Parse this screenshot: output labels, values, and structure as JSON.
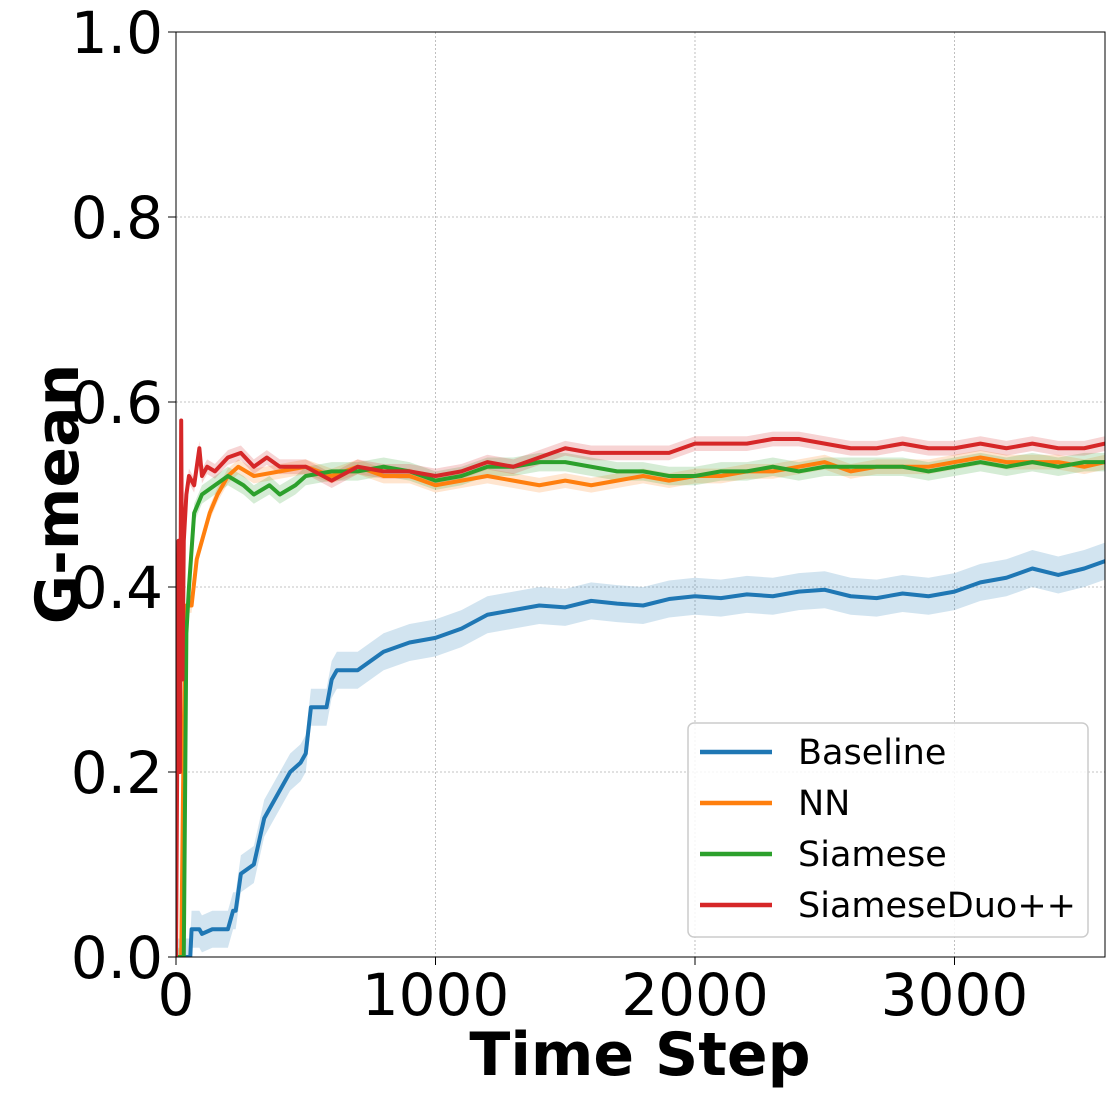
{
  "chart_data": {
    "type": "line",
    "title": "",
    "xlabel": "Time Step",
    "ylabel": "G-mean",
    "xlim": [
      0,
      3580
    ],
    "ylim": [
      0.0,
      1.0
    ],
    "xticks": [
      0,
      1000,
      2000,
      3000
    ],
    "xtick_labels": [
      "0",
      "1000",
      "2000",
      "3000"
    ],
    "yticks": [
      0.0,
      0.2,
      0.4,
      0.6,
      0.8,
      1.0
    ],
    "ytick_labels": [
      "0.0",
      "0.2",
      "0.4",
      "0.6",
      "0.8",
      "1.0"
    ],
    "grid": true,
    "legend_position": "lower-right",
    "series": [
      {
        "name": "Baseline",
        "color": "#1f77b4",
        "band": 0.02,
        "x": [
          0,
          40,
          55,
          60,
          90,
          100,
          140,
          200,
          220,
          230,
          240,
          250,
          300,
          340,
          400,
          440,
          480,
          500,
          520,
          580,
          600,
          620,
          640,
          700,
          800,
          900,
          1000,
          1100,
          1200,
          1300,
          1400,
          1500,
          1600,
          1700,
          1800,
          1900,
          2000,
          2100,
          2200,
          2300,
          2400,
          2500,
          2600,
          2700,
          2800,
          2900,
          3000,
          3100,
          3200,
          3300,
          3400,
          3500,
          3580
        ],
        "y": [
          0.0,
          0.0,
          0.0,
          0.03,
          0.03,
          0.025,
          0.03,
          0.03,
          0.05,
          0.05,
          0.07,
          0.09,
          0.1,
          0.15,
          0.18,
          0.2,
          0.21,
          0.22,
          0.27,
          0.27,
          0.3,
          0.31,
          0.31,
          0.31,
          0.33,
          0.34,
          0.345,
          0.355,
          0.37,
          0.375,
          0.38,
          0.378,
          0.385,
          0.382,
          0.38,
          0.387,
          0.39,
          0.388,
          0.392,
          0.39,
          0.395,
          0.397,
          0.39,
          0.388,
          0.393,
          0.39,
          0.395,
          0.405,
          0.41,
          0.42,
          0.413,
          0.42,
          0.428
        ]
      },
      {
        "name": "NN",
        "color": "#ff7f0e",
        "band": 0.008,
        "x": [
          0,
          20,
          30,
          40,
          60,
          80,
          100,
          130,
          160,
          200,
          240,
          300,
          400,
          500,
          600,
          700,
          800,
          900,
          1000,
          1100,
          1200,
          1300,
          1400,
          1500,
          1600,
          1700,
          1800,
          1900,
          2000,
          2100,
          2200,
          2300,
          2400,
          2500,
          2600,
          2700,
          2800,
          2900,
          3000,
          3100,
          3200,
          3300,
          3400,
          3500,
          3580
        ],
        "y": [
          0.0,
          0.0,
          0.25,
          0.38,
          0.38,
          0.43,
          0.45,
          0.48,
          0.5,
          0.52,
          0.53,
          0.52,
          0.525,
          0.53,
          0.52,
          0.53,
          0.52,
          0.52,
          0.51,
          0.515,
          0.52,
          0.515,
          0.51,
          0.515,
          0.51,
          0.515,
          0.52,
          0.515,
          0.52,
          0.52,
          0.525,
          0.525,
          0.53,
          0.535,
          0.525,
          0.53,
          0.53,
          0.53,
          0.535,
          0.54,
          0.535,
          0.535,
          0.535,
          0.53,
          0.535
        ]
      },
      {
        "name": "Siamese",
        "color": "#2ca02c",
        "band": 0.01,
        "x": [
          0,
          30,
          40,
          50,
          70,
          100,
          150,
          200,
          260,
          300,
          360,
          400,
          460,
          500,
          600,
          700,
          800,
          900,
          1000,
          1100,
          1200,
          1300,
          1400,
          1500,
          1600,
          1700,
          1800,
          1900,
          2000,
          2100,
          2200,
          2300,
          2400,
          2500,
          2600,
          2700,
          2800,
          2900,
          3000,
          3100,
          3200,
          3300,
          3400,
          3500,
          3580
        ],
        "y": [
          0.0,
          0.0,
          0.35,
          0.4,
          0.48,
          0.5,
          0.51,
          0.52,
          0.51,
          0.5,
          0.51,
          0.5,
          0.51,
          0.52,
          0.525,
          0.525,
          0.53,
          0.525,
          0.515,
          0.52,
          0.53,
          0.53,
          0.535,
          0.535,
          0.53,
          0.525,
          0.525,
          0.52,
          0.52,
          0.525,
          0.525,
          0.53,
          0.525,
          0.53,
          0.53,
          0.53,
          0.53,
          0.525,
          0.53,
          0.535,
          0.53,
          0.535,
          0.53,
          0.535,
          0.535
        ]
      },
      {
        "name": "SiameseDuo++",
        "color": "#d62728",
        "band": 0.008,
        "x": [
          0,
          10,
          15,
          20,
          25,
          30,
          40,
          50,
          70,
          90,
          100,
          120,
          150,
          200,
          250,
          300,
          350,
          400,
          500,
          600,
          700,
          800,
          900,
          1000,
          1100,
          1200,
          1300,
          1400,
          1500,
          1600,
          1700,
          1800,
          1900,
          2000,
          2100,
          2200,
          2300,
          2400,
          2500,
          2600,
          2700,
          2800,
          2900,
          3000,
          3100,
          3200,
          3300,
          3400,
          3500,
          3580
        ],
        "y": [
          0.0,
          0.45,
          0.2,
          0.58,
          0.3,
          0.45,
          0.5,
          0.52,
          0.51,
          0.55,
          0.52,
          0.53,
          0.525,
          0.54,
          0.545,
          0.53,
          0.54,
          0.53,
          0.53,
          0.515,
          0.53,
          0.525,
          0.525,
          0.52,
          0.525,
          0.535,
          0.53,
          0.54,
          0.55,
          0.545,
          0.545,
          0.545,
          0.545,
          0.555,
          0.555,
          0.555,
          0.56,
          0.56,
          0.555,
          0.55,
          0.55,
          0.555,
          0.55,
          0.55,
          0.555,
          0.55,
          0.555,
          0.55,
          0.55,
          0.555
        ]
      }
    ]
  }
}
